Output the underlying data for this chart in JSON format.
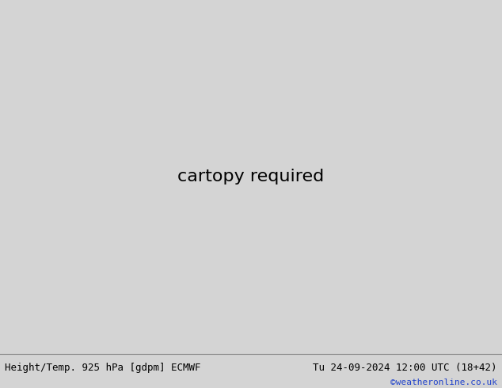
{
  "title_left": "Height/Temp. 925 hPa [gdpm] ECMWF",
  "title_right": "Tu 24-09-2024 12:00 UTC (18+42)",
  "credit": "©weatheronline.co.uk",
  "bg_color": "#d4d4d4",
  "ocean_color": "#d4d4d4",
  "land_color": "#c8c8c8",
  "aus_color": "#c8e878",
  "aus_green_color": "#a0d840",
  "title_fontsize": 9,
  "credit_fontsize": 8,
  "lon_min": 100,
  "lon_max": 182,
  "lat_min": -56,
  "lat_max": 10
}
